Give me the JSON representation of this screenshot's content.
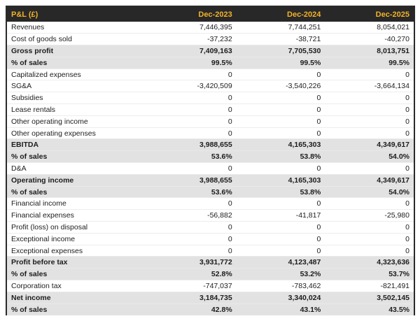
{
  "colors": {
    "header_bg": "#282828",
    "header_text": "#f3b229",
    "emphasis_row_bg": "#e2e2e2",
    "body_text": "#1d1d1d",
    "table_border": "#2a2a2a"
  },
  "chart_data": {
    "type": "table",
    "title": "P&L (£)",
    "columns": [
      "Dec-2023",
      "Dec-2024",
      "Dec-2025"
    ],
    "rows": [
      {
        "label": "Revenues",
        "values": [
          "7,446,395",
          "7,744,251",
          "8,054,021"
        ],
        "emphasis": false
      },
      {
        "label": "Cost of goods sold",
        "values": [
          "-37,232",
          "-38,721",
          "-40,270"
        ],
        "emphasis": false
      },
      {
        "label": "Gross profit",
        "values": [
          "7,409,163",
          "7,705,530",
          "8,013,751"
        ],
        "emphasis": true
      },
      {
        "label": "% of sales",
        "values": [
          "99.5%",
          "99.5%",
          "99.5%"
        ],
        "emphasis": true
      },
      {
        "label": "Capitalized expenses",
        "values": [
          "0",
          "0",
          "0"
        ],
        "emphasis": false
      },
      {
        "label": "SG&A",
        "values": [
          "-3,420,509",
          "-3,540,226",
          "-3,664,134"
        ],
        "emphasis": false
      },
      {
        "label": "Subsidies",
        "values": [
          "0",
          "0",
          "0"
        ],
        "emphasis": false
      },
      {
        "label": "Lease rentals",
        "values": [
          "0",
          "0",
          "0"
        ],
        "emphasis": false
      },
      {
        "label": "Other operating income",
        "values": [
          "0",
          "0",
          "0"
        ],
        "emphasis": false
      },
      {
        "label": "Other operating expenses",
        "values": [
          "0",
          "0",
          "0"
        ],
        "emphasis": false
      },
      {
        "label": "EBITDA",
        "values": [
          "3,988,655",
          "4,165,303",
          "4,349,617"
        ],
        "emphasis": true
      },
      {
        "label": "% of sales",
        "values": [
          "53.6%",
          "53.8%",
          "54.0%"
        ],
        "emphasis": true
      },
      {
        "label": "D&A",
        "values": [
          "0",
          "0",
          "0"
        ],
        "emphasis": false
      },
      {
        "label": "Operating income",
        "values": [
          "3,988,655",
          "4,165,303",
          "4,349,617"
        ],
        "emphasis": true
      },
      {
        "label": "% of sales",
        "values": [
          "53.6%",
          "53.8%",
          "54.0%"
        ],
        "emphasis": true
      },
      {
        "label": "Financial income",
        "values": [
          "0",
          "0",
          "0"
        ],
        "emphasis": false
      },
      {
        "label": "Financial expenses",
        "values": [
          "-56,882",
          "-41,817",
          "-25,980"
        ],
        "emphasis": false
      },
      {
        "label": "Profit (loss) on disposal",
        "values": [
          "0",
          "0",
          "0"
        ],
        "emphasis": false
      },
      {
        "label": "Exceptional income",
        "values": [
          "0",
          "0",
          "0"
        ],
        "emphasis": false
      },
      {
        "label": "Exceptional expenses",
        "values": [
          "0",
          "0",
          "0"
        ],
        "emphasis": false
      },
      {
        "label": "Profit before tax",
        "values": [
          "3,931,772",
          "4,123,487",
          "4,323,636"
        ],
        "emphasis": true
      },
      {
        "label": "% of sales",
        "values": [
          "52.8%",
          "53.2%",
          "53.7%"
        ],
        "emphasis": true
      },
      {
        "label": "Corporation tax",
        "values": [
          "-747,037",
          "-783,462",
          "-821,491"
        ],
        "emphasis": false
      },
      {
        "label": "Net income",
        "values": [
          "3,184,735",
          "3,340,024",
          "3,502,145"
        ],
        "emphasis": true
      },
      {
        "label": "% of sales",
        "values": [
          "42.8%",
          "43.1%",
          "43.5%"
        ],
        "emphasis": true
      }
    ]
  }
}
